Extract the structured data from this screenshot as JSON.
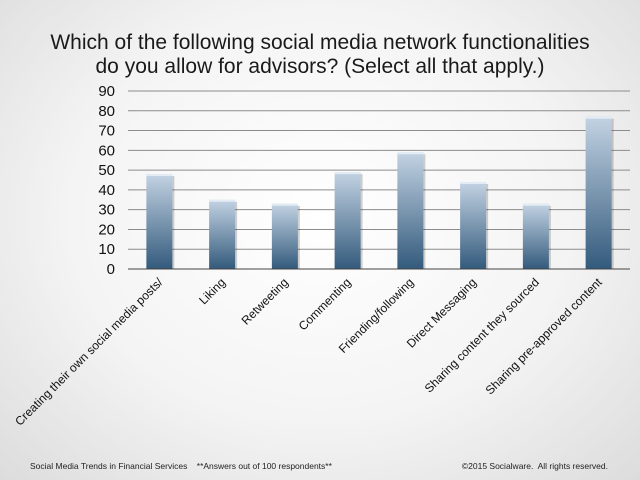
{
  "title": {
    "line1": "Which of the following social media network functionalities",
    "line2": "do you allow for advisors? (Select all that apply.)"
  },
  "footer": {
    "left": "Social Media Trends in Financial Services    **Answers out of 100 respondents**",
    "right": "©2015 Socialware.  All rights reserved."
  },
  "chart_data": {
    "type": "bar",
    "categories": [
      "Creating their own social media posts/",
      "Liking",
      "Retweeting",
      "Commenting",
      "Friending/following",
      "Direct Messaging",
      "Sharing content they sourced",
      "Sharing pre-approved content"
    ],
    "values": [
      48,
      35,
      33,
      49,
      59,
      44,
      33,
      77
    ],
    "ylim": [
      0,
      90
    ],
    "yticks": [
      0,
      10,
      20,
      30,
      40,
      50,
      60,
      70,
      80,
      90
    ],
    "grid": true,
    "bar_color_top": "#c3d3e3",
    "bar_color_bottom": "#335a7c"
  }
}
